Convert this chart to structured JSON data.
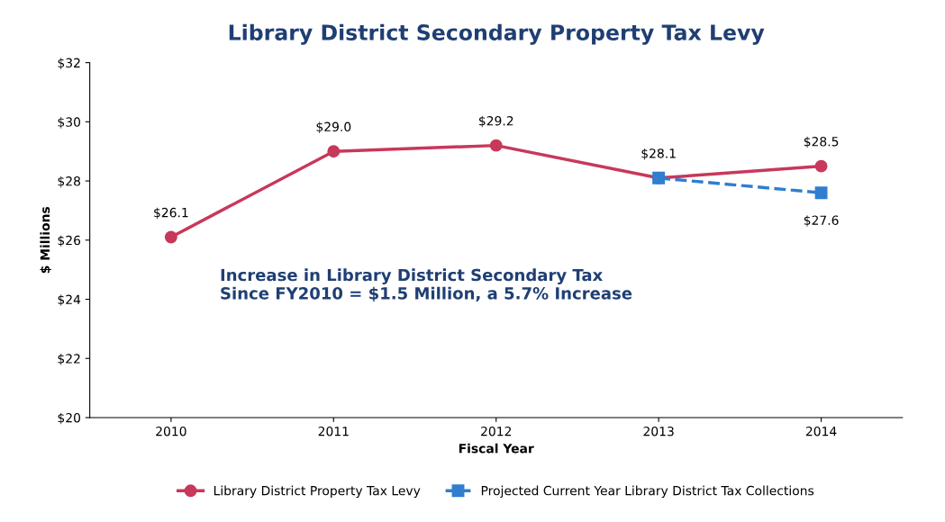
{
  "chart_data": {
    "type": "line",
    "title": "Library District Secondary Property Tax Levy",
    "xlabel": "Fiscal Year",
    "ylabel": "$ Millions",
    "categories": [
      "2010",
      "2011",
      "2012",
      "2013",
      "2014"
    ],
    "series": [
      {
        "name": "Library District Property Tax Levy",
        "color": "#c8385a",
        "marker": "circle",
        "line_style": "solid",
        "values": [
          26.1,
          29.0,
          29.2,
          28.1,
          28.5
        ],
        "value_labels": [
          "$26.1",
          "$29.0",
          "$29.2",
          "$28.1",
          "$28.5"
        ]
      },
      {
        "name": "Projected Current Year Library District Tax Collections",
        "color": "#2f7ed0",
        "marker": "square",
        "line_style": "dashed",
        "values": [
          null,
          null,
          null,
          28.1,
          27.6
        ],
        "value_labels": [
          null,
          null,
          null,
          null,
          "$27.6"
        ]
      }
    ],
    "ylim": [
      20,
      32
    ],
    "yticks": [
      {
        "value": 20,
        "label": "$20"
      },
      {
        "value": 22,
        "label": "$22"
      },
      {
        "value": 24,
        "label": "$24"
      },
      {
        "value": 26,
        "label": "$26"
      },
      {
        "value": 28,
        "label": "$28"
      },
      {
        "value": 30,
        "label": "$30"
      },
      {
        "value": 32,
        "label": "$32"
      }
    ],
    "annotations": [
      "Increase in Library District Secondary Tax\nSince FY2010 = $1.5 Million, a 5.7% Increase"
    ],
    "legend": "bottom",
    "grid": false
  }
}
